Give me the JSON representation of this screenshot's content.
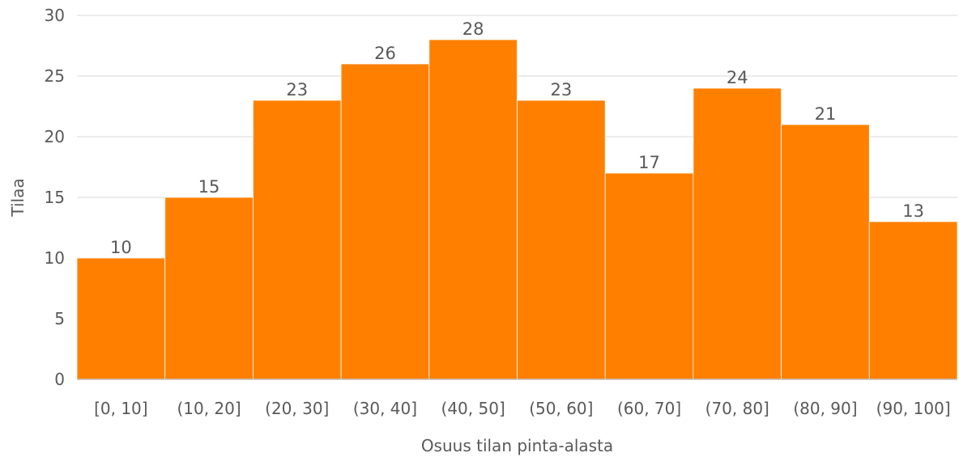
{
  "chart_data": {
    "type": "bar",
    "categories": [
      "[0, 10]",
      "(10, 20]",
      "(20, 30]",
      "(30, 40]",
      "(40, 50]",
      "(50, 60]",
      "(60, 70]",
      "(70, 80]",
      "(80, 90]",
      "(90, 100]"
    ],
    "values": [
      10,
      15,
      23,
      26,
      28,
      23,
      17,
      24,
      21,
      13
    ],
    "xlabel": "Osuus tilan pinta-alasta",
    "ylabel": "Tilaa",
    "ylim": [
      0,
      30
    ],
    "yticks": [
      "0",
      "5",
      "10",
      "15",
      "20",
      "25",
      "30"
    ],
    "grid": true,
    "bar_color": "#FF8000",
    "bar_gap": "none",
    "data_labels": true
  }
}
